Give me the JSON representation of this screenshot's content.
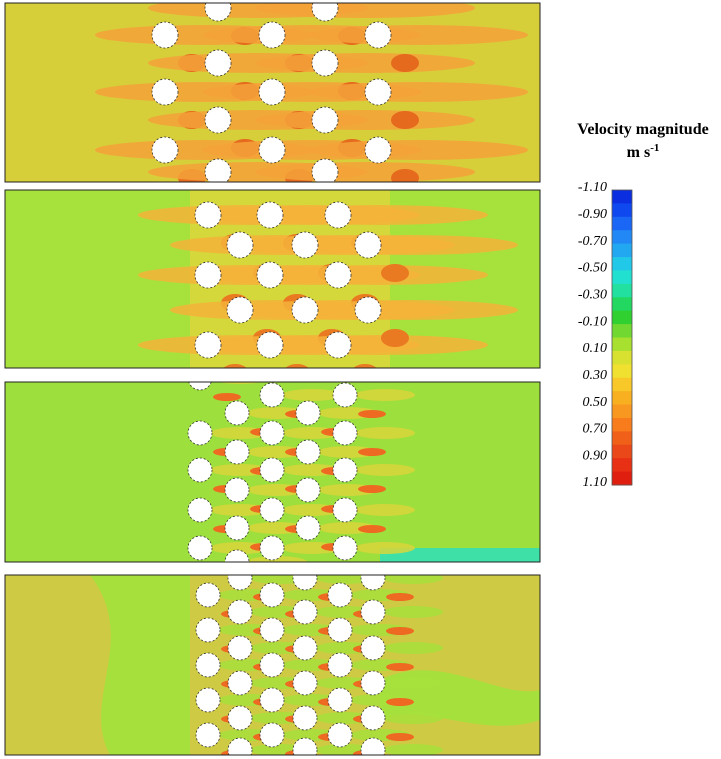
{
  "legend": {
    "title": "Velocity magnitude",
    "unit": "m s",
    "unit_exponent": "-1",
    "ticks": [
      "-1.10",
      "-0.90",
      "-0.70",
      "-0.50",
      "-0.30",
      "-0.10",
      "0.10",
      "0.30",
      "0.50",
      "0.70",
      "0.90",
      "1.10"
    ]
  }
}
